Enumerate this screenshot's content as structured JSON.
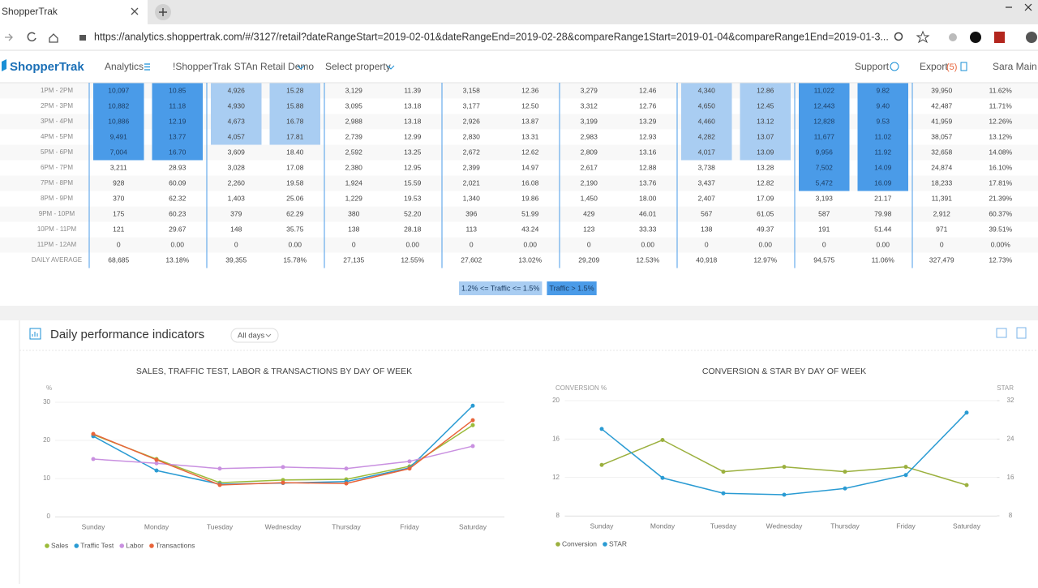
{
  "browser": {
    "tab_title": "ShopperTrak",
    "url": "https://analytics.shoppertrak.com/#/3127/retail?dateRangeStart=2019-02-01&dateRangeEnd=2019-02-28&compareRange1Start=2019-01-04&compareRange1End=2019-01-3..."
  },
  "nav": {
    "logo": "ShopperTrak",
    "items": [
      "Analytics",
      "!ShopperTrak STAn Retail Demo",
      "Select property"
    ],
    "support": "Support",
    "export": "Export",
    "export_count": "(5)",
    "user": "Sara Main"
  },
  "table": {
    "rows": [
      {
        "label": "1PM - 2PM",
        "cells": [
          "10,097",
          "10.85",
          "4,926",
          "15.28",
          "3,129",
          "11.39",
          "3,158",
          "12.36",
          "3,279",
          "12.46",
          "4,340",
          "12.86",
          "11,022",
          "9.82",
          "39,950",
          "11.62%"
        ]
      },
      {
        "label": "2PM - 3PM",
        "cells": [
          "10,882",
          "11.18",
          "4,930",
          "15.88",
          "3,095",
          "13.18",
          "3,177",
          "12.50",
          "3,312",
          "12.76",
          "4,650",
          "12.45",
          "12,443",
          "9.40",
          "42,487",
          "11.71%"
        ]
      },
      {
        "label": "3PM - 4PM",
        "cells": [
          "10,886",
          "12.19",
          "4,673",
          "16.78",
          "2,988",
          "13.18",
          "2,926",
          "13.87",
          "3,199",
          "13.29",
          "4,460",
          "13.12",
          "12,828",
          "9.53",
          "41,959",
          "12.26%"
        ]
      },
      {
        "label": "4PM - 5PM",
        "cells": [
          "9,491",
          "13.77",
          "4,057",
          "17.81",
          "2,739",
          "12.99",
          "2,830",
          "13.31",
          "2,983",
          "12.93",
          "4,282",
          "13.07",
          "11,677",
          "11.02",
          "38,057",
          "13.12%"
        ]
      },
      {
        "label": "5PM - 6PM",
        "cells": [
          "7,004",
          "16.70",
          "3,609",
          "18.40",
          "2,592",
          "13.25",
          "2,672",
          "12.62",
          "2,809",
          "13.16",
          "4,017",
          "13.09",
          "9,956",
          "11.92",
          "32,658",
          "14.08%"
        ]
      },
      {
        "label": "6PM - 7PM",
        "cells": [
          "3,211",
          "28.93",
          "3,028",
          "17.08",
          "2,380",
          "12.95",
          "2,399",
          "14.97",
          "2,617",
          "12.88",
          "3,738",
          "13.28",
          "7,502",
          "14.09",
          "24,874",
          "16.10%"
        ]
      },
      {
        "label": "7PM - 8PM",
        "cells": [
          "928",
          "60.09",
          "2,260",
          "19.58",
          "1,924",
          "15.59",
          "2,021",
          "16.08",
          "2,190",
          "13.76",
          "3,437",
          "12.82",
          "5,472",
          "16.09",
          "18,233",
          "17.81%"
        ]
      },
      {
        "label": "8PM - 9PM",
        "cells": [
          "370",
          "62.32",
          "1,403",
          "25.06",
          "1,229",
          "19.53",
          "1,340",
          "19.86",
          "1,450",
          "18.00",
          "2,407",
          "17.09",
          "3,193",
          "21.17",
          "11,391",
          "21.39%"
        ]
      },
      {
        "label": "9PM - 10PM",
        "cells": [
          "175",
          "60.23",
          "379",
          "62.29",
          "380",
          "52.20",
          "396",
          "51.99",
          "429",
          "46.01",
          "567",
          "61.05",
          "587",
          "79.98",
          "2,912",
          "60.37%"
        ]
      },
      {
        "label": "10PM - 11PM",
        "cells": [
          "121",
          "29.67",
          "148",
          "35.75",
          "138",
          "28.18",
          "113",
          "43.24",
          "123",
          "33.33",
          "138",
          "49.37",
          "191",
          "51.44",
          "971",
          "39.51%"
        ]
      },
      {
        "label": "11PM - 12AM",
        "cells": [
          "0",
          "0.00",
          "0",
          "0.00",
          "0",
          "0.00",
          "0",
          "0.00",
          "0",
          "0.00",
          "0",
          "0.00",
          "0",
          "0.00",
          "0",
          "0.00%"
        ]
      },
      {
        "label": "DAILY AVERAGE",
        "cells": [
          "68,685",
          "13.18%",
          "39,355",
          "15.78%",
          "27,135",
          "12.55%",
          "27,602",
          "13.02%",
          "29,209",
          "12.53%",
          "40,918",
          "12.97%",
          "94,575",
          "11.06%",
          "327,479",
          "12.73%"
        ]
      }
    ]
  },
  "table_legend": [
    {
      "label": "1.2% <= Traffic <= 1.5%",
      "color": "#a9cdf2"
    },
    {
      "label": "Traffic > 1.5%",
      "color": "#4a9be8"
    }
  ],
  "section": {
    "title": "Daily performance indicators",
    "filter": "All days"
  },
  "chart_data": [
    {
      "type": "line",
      "title": "SALES, TRAFFIC TEST, LABOR & TRANSACTIONS BY DAY OF WEEK",
      "ylabel": "%",
      "categories": [
        "Sunday",
        "Monday",
        "Tuesday",
        "Wednesday",
        "Thursday",
        "Friday",
        "Saturday"
      ],
      "ylim": [
        0,
        30
      ],
      "yticks": [
        0,
        10,
        20,
        30
      ],
      "grid": true,
      "legend": "bottom-left",
      "series": [
        {
          "name": "Sales",
          "color": "#9bbb3a",
          "values": [
            21.5,
            15.1,
            8.9,
            9.6,
            9.8,
            13.2,
            24
          ]
        },
        {
          "name": "Traffic Test",
          "color": "#2a9bd3",
          "values": [
            21.1,
            12.1,
            8.5,
            8.8,
            9.2,
            12.8,
            29.1
          ]
        },
        {
          "name": "Labor",
          "color": "#c990e0",
          "values": [
            15.1,
            14,
            12.6,
            13,
            12.6,
            14.5,
            18.5
          ]
        },
        {
          "name": "Transactions",
          "color": "#e8643a",
          "values": [
            21.7,
            14.9,
            8.3,
            8.9,
            8.7,
            12.6,
            25.3
          ]
        }
      ]
    },
    {
      "type": "line",
      "title": "CONVERSION & STAR BY DAY OF WEEK",
      "ylabel": "CONVERSION %",
      "y2label": "STAR",
      "categories": [
        "Sunday",
        "Monday",
        "Tuesday",
        "Wednesday",
        "Thursday",
        "Friday",
        "Saturday"
      ],
      "ylim": [
        8,
        20
      ],
      "yticks": [
        8,
        12,
        16,
        20
      ],
      "y2lim": [
        8,
        32
      ],
      "y2ticks": [
        8,
        16,
        24,
        32
      ],
      "grid": true,
      "legend": "bottom-left",
      "series": [
        {
          "name": "Conversion",
          "color": "#9bb03e",
          "values": [
            13.3,
            15.9,
            12.6,
            13.1,
            12.6,
            13.1,
            11.2
          ]
        },
        {
          "name": "STAR",
          "color": "#2a9bd3",
          "axis": "y2",
          "values": [
            26.1,
            15.9,
            12.7,
            12.4,
            13.7,
            16.5,
            29.5
          ]
        }
      ]
    }
  ]
}
